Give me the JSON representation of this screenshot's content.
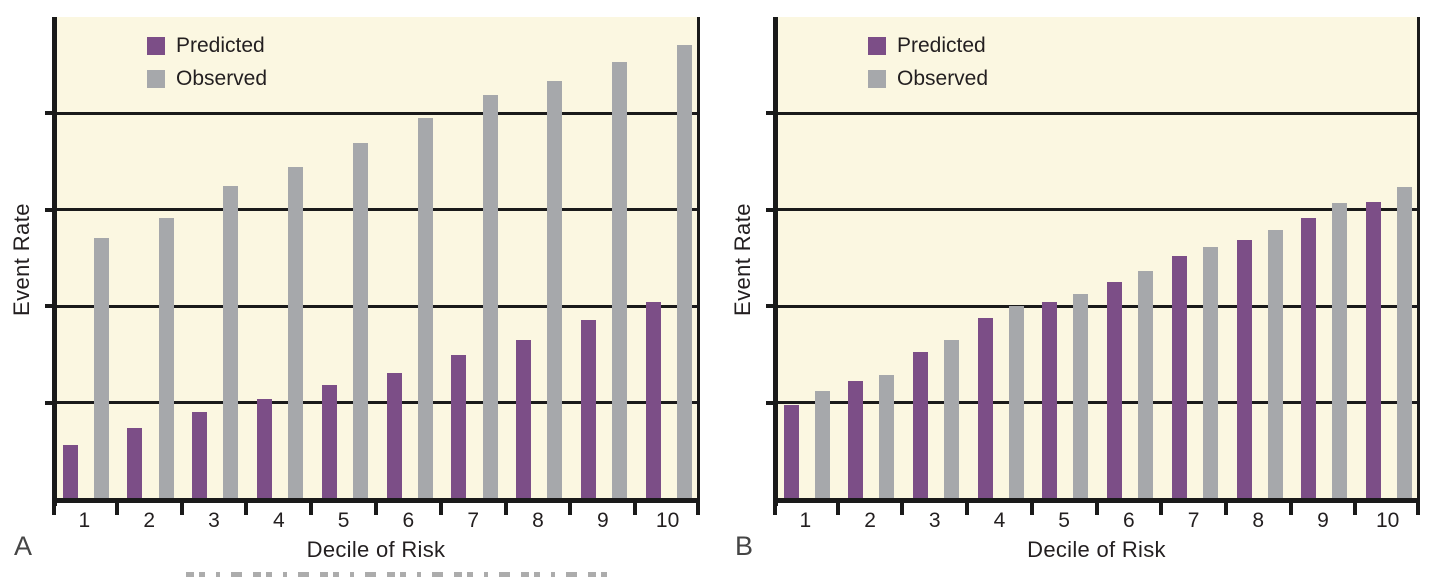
{
  "figure": {
    "background_color": "#FFFFFF",
    "plot_background_color": "#FBF7E1",
    "line_color": "#1A1A1A",
    "text_color": "#231F20"
  },
  "chart_data": [
    {
      "panel_label": "A",
      "type": "bar",
      "title": "",
      "xlabel": "Decile of Risk",
      "ylabel": "Event Rate",
      "categories": [
        "1",
        "2",
        "3",
        "4",
        "5",
        "6",
        "7",
        "8",
        "9",
        "10"
      ],
      "series": [
        {
          "name": "Predicted",
          "color": "#7C4E87",
          "values": [
            0.56,
            0.74,
            0.9,
            1.04,
            1.18,
            1.31,
            1.49,
            1.65,
            1.86,
            2.04
          ]
        },
        {
          "name": "Observed",
          "color": "#A6A8AB",
          "values": [
            2.71,
            2.91,
            3.25,
            3.44,
            3.69,
            3.95,
            4.19,
            4.34,
            4.53,
            4.71
          ]
        }
      ],
      "ylim": [
        0,
        5
      ],
      "gridlines_y": [
        1,
        2,
        3,
        4
      ],
      "y_tick_labels": [],
      "grid": "horizontal",
      "legend_position": "top-left-inside"
    },
    {
      "panel_label": "B",
      "type": "bar",
      "title": "",
      "xlabel": "Decile of Risk",
      "ylabel": "Event Rate",
      "categories": [
        "1",
        "2",
        "3",
        "4",
        "5",
        "6",
        "7",
        "8",
        "9",
        "10"
      ],
      "series": [
        {
          "name": "Predicted",
          "color": "#7C4E87",
          "values": [
            0.98,
            1.22,
            1.52,
            1.88,
            2.04,
            2.25,
            2.52,
            2.69,
            2.91,
            3.08
          ]
        },
        {
          "name": "Observed",
          "color": "#A6A8AB",
          "values": [
            1.12,
            1.29,
            1.65,
            2.0,
            2.13,
            2.36,
            2.61,
            2.79,
            3.07,
            3.24
          ]
        }
      ],
      "ylim": [
        0,
        5
      ],
      "gridlines_y": [
        1,
        2,
        3,
        4
      ],
      "y_tick_labels": [],
      "grid": "horizontal",
      "legend_position": "top-left-inside"
    }
  ]
}
